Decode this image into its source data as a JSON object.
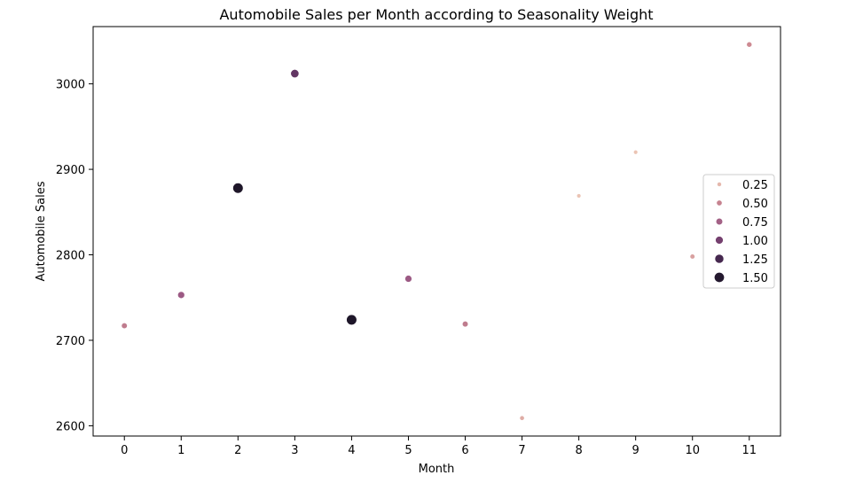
{
  "chart_data": {
    "type": "scatter",
    "title": "Automobile Sales per Month according to Seasonality Weight",
    "xlabel": "Month",
    "ylabel": "Automobile Sales",
    "xlim": [
      -0.55,
      11.55
    ],
    "ylim": [
      2588,
      3067
    ],
    "xticks": [
      0,
      1,
      2,
      3,
      4,
      5,
      6,
      7,
      8,
      9,
      10,
      11
    ],
    "yticks": [
      2600,
      2700,
      2800,
      2900,
      3000
    ],
    "grid": false,
    "legend_position": "center-right",
    "points": [
      {
        "x": 0,
        "y": 2717,
        "weight": 0.55
      },
      {
        "x": 1,
        "y": 2753,
        "weight": 0.8
      },
      {
        "x": 2,
        "y": 2878,
        "weight": 1.55
      },
      {
        "x": 3,
        "y": 3012,
        "weight": 1.1
      },
      {
        "x": 4,
        "y": 2724,
        "weight": 1.55
      },
      {
        "x": 5,
        "y": 2772,
        "weight": 0.8
      },
      {
        "x": 6,
        "y": 2719,
        "weight": 0.55
      },
      {
        "x": 7,
        "y": 2609,
        "weight": 0.3
      },
      {
        "x": 8,
        "y": 2869,
        "weight": 0.2
      },
      {
        "x": 9,
        "y": 2920,
        "weight": 0.2
      },
      {
        "x": 10,
        "y": 2798,
        "weight": 0.35
      },
      {
        "x": 11,
        "y": 3046,
        "weight": 0.45
      }
    ],
    "legend": [
      {
        "label": "0.25",
        "weight": 0.25
      },
      {
        "label": "0.50",
        "weight": 0.5
      },
      {
        "label": "0.75",
        "weight": 0.75
      },
      {
        "label": "1.00",
        "weight": 1.0
      },
      {
        "label": "1.25",
        "weight": 1.25
      },
      {
        "label": "1.50",
        "weight": 1.5
      }
    ],
    "colors": {
      "light": "#ebc4b4",
      "mid1": "#cd8a92",
      "mid2": "#9c5a84",
      "dark1": "#6b3a6a",
      "dark2": "#3d2348",
      "darkest": "#1e1629"
    }
  }
}
